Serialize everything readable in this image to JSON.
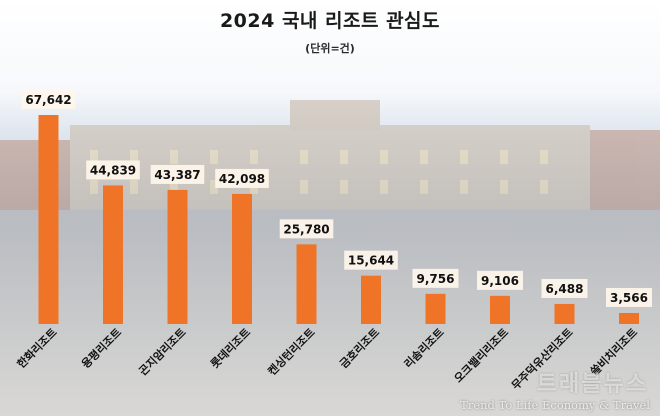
{
  "chart_data": {
    "type": "bar",
    "title": "2024 국내 리조트 관심도",
    "subtitle": "(단위=건)",
    "categories": [
      "한화리조트",
      "용평리조트",
      "곤지암리조트",
      "롯데리조트",
      "켄싱턴리조트",
      "금호리조트",
      "리솜리조트",
      "오크밸리리조트",
      "무주덕유산리조트",
      "쏠비치리조트"
    ],
    "values": [
      67642,
      44839,
      43387,
      42098,
      25780,
      15644,
      9756,
      9106,
      6488,
      3566
    ],
    "value_labels": [
      "67,642",
      "44,839",
      "43,387",
      "42,098",
      "25,780",
      "15,644",
      "9,756",
      "9,106",
      "6,488",
      "3,566"
    ],
    "bar_color": "#F07427",
    "label_bg": "#FFF6EC"
  },
  "watermark": {
    "name": "트래블뉴스",
    "tagline": "Trend To Life Economy & Travel"
  }
}
